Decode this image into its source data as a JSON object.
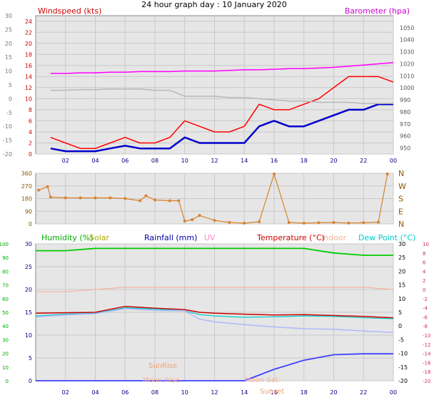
{
  "title": "24 hour graph day : 10 January 2020",
  "x_ticks": [
    "02",
    "04",
    "06",
    "08",
    "10",
    "12",
    "14",
    "16",
    "18",
    "20",
    "22",
    "00"
  ],
  "colors": {
    "wind_speed": "#ff0000",
    "wind_avg": "#0000cc",
    "barometer": "#ff00ff",
    "baro_trace_grey": "#b8b8b8",
    "direction": "#d9822b",
    "humidity": "#00cc00",
    "solar": "#cccc00",
    "rainfall": "#4040ff",
    "uv": "#ff99cc",
    "temperature": "#cc0000",
    "indoor": "#f4b49c",
    "dew_point": "#00cccc",
    "dew_trace": "#b0b8f8",
    "plot_bg": "#e6e6e6"
  },
  "chart_data": [
    {
      "type": "line",
      "panel": "wind_barometer",
      "title": "24 hour graph day : 10 January 2020",
      "left_axis": {
        "label": "Windspeed (kts)",
        "range": [
          0,
          25
        ],
        "ticks": [
          0,
          2,
          4,
          6,
          8,
          10,
          12,
          14,
          16,
          18,
          20,
          22,
          24
        ]
      },
      "outer_axis": {
        "range": [
          -20,
          30
        ],
        "ticks": [
          -20,
          -15,
          -10,
          -5,
          0,
          5,
          10,
          15,
          20,
          25,
          30
        ]
      },
      "right_axis": {
        "label": "Barometer (hpa)",
        "range": [
          980,
          1050
        ],
        "ticks": [
          980,
          990,
          1000,
          1010,
          1020,
          1030,
          1040,
          1050
        ],
        "extra_ticks": [
          950,
          960,
          970
        ],
        "extra_range": [
          945,
          1060
        ]
      },
      "grid": true,
      "x_hours": [
        1,
        2,
        3,
        4,
        5,
        6,
        7,
        8,
        9,
        10,
        11,
        12,
        13,
        14,
        15,
        16,
        17,
        18,
        19,
        20,
        21,
        22,
        23,
        24
      ],
      "series": [
        {
          "name": "Windspeed",
          "values": [
            3,
            2,
            1,
            1,
            2,
            3,
            2,
            2,
            3,
            6,
            5,
            4,
            4,
            5,
            9,
            8,
            8,
            9,
            10,
            12,
            14,
            14,
            14,
            13
          ]
        },
        {
          "name": "Wind average",
          "values": [
            1,
            0.5,
            0.5,
            0.5,
            1,
            1.5,
            1,
            1,
            1,
            3,
            2,
            2,
            2,
            2,
            5,
            6,
            5,
            5,
            6,
            7,
            8,
            8,
            9,
            9
          ]
        },
        {
          "name": "Barometer",
          "values": [
            1012,
            1012,
            1012.5,
            1012.5,
            1013,
            1013,
            1013.5,
            1013.5,
            1013.5,
            1014,
            1014,
            1014,
            1014.5,
            1015,
            1015,
            1015.5,
            1016,
            1016,
            1016.5,
            1017,
            1018,
            1019,
            1020,
            1021
          ]
        },
        {
          "name": "Barometer trace",
          "values": [
            998,
            998,
            998.5,
            998.5,
            999,
            999,
            999,
            998,
            998,
            993,
            993,
            993,
            992,
            992,
            991,
            990,
            989,
            989,
            988,
            988,
            988,
            987,
            987,
            987
          ]
        }
      ]
    },
    {
      "type": "scatter",
      "panel": "wind_direction",
      "left_axis": {
        "range": [
          0,
          360
        ],
        "ticks": [
          0,
          90,
          180,
          270,
          360
        ]
      },
      "right_axis": {
        "labels": [
          "N",
          "W",
          "S",
          "E",
          "N"
        ]
      },
      "grid": true,
      "x_hours": [
        0.2,
        0.8,
        1,
        2,
        3,
        4,
        5,
        6,
        7,
        7.4,
        8,
        9,
        9.6,
        10,
        10.5,
        11,
        12,
        13,
        14,
        15,
        16,
        17,
        18,
        19,
        20,
        21,
        22,
        23,
        23.6
      ],
      "values": [
        240,
        265,
        190,
        185,
        185,
        185,
        185,
        180,
        165,
        200,
        170,
        165,
        165,
        20,
        30,
        60,
        25,
        10,
        5,
        15,
        355,
        10,
        5,
        8,
        10,
        6,
        8,
        12,
        355
      ]
    },
    {
      "type": "line",
      "panel": "humidity_temperature",
      "series_labels": [
        "Humidity (%)",
        "Solar",
        "Rainfall (mm)",
        "UV",
        "Temperature (°C)",
        "Indoor",
        "Dew Point (°C)"
      ],
      "left_axis_outer": {
        "range": [
          0,
          100
        ],
        "ticks": [
          0,
          10,
          20,
          30,
          40,
          50,
          60,
          70,
          80,
          90,
          100
        ]
      },
      "left_axis_inner": {
        "range": [
          0,
          30
        ],
        "ticks": [
          0,
          5,
          10,
          15,
          20,
          25,
          30
        ]
      },
      "right_axis_inner": {
        "range": [
          -20,
          30
        ],
        "ticks": [
          -20,
          -15,
          -10,
          -5,
          0,
          5,
          10,
          15,
          20,
          25,
          30
        ]
      },
      "right_axis_outer": {
        "range": [
          -20,
          10
        ],
        "ticks": [
          -20,
          -18,
          -16,
          -14,
          -12,
          -10,
          -8,
          -6,
          -4,
          -2,
          0,
          2,
          4,
          6,
          8,
          10
        ]
      },
      "annotations": [
        "SunRise",
        "Moon Rise",
        "Sunset",
        "Moon Set"
      ],
      "grid": true,
      "x_hours": [
        0,
        2,
        4,
        6,
        8,
        10,
        11,
        12,
        14,
        16,
        18,
        20,
        22,
        24
      ],
      "series": [
        {
          "name": "Humidity",
          "values": [
            28.5,
            28.5,
            29,
            29,
            29,
            29,
            29,
            29,
            29,
            29,
            29,
            28,
            27.5,
            27.5
          ]
        },
        {
          "name": "Temperature",
          "values": [
            14.8,
            14.9,
            15,
            16.3,
            15.9,
            15.6,
            15,
            14.8,
            14.6,
            14.4,
            14.5,
            14.3,
            14.1,
            13.8
          ]
        },
        {
          "name": "Dew Point",
          "values": [
            14.2,
            14.6,
            14.8,
            16,
            15.7,
            15.3,
            14.5,
            14.2,
            13.9,
            14,
            14.2,
            14.1,
            13.8,
            13.6
          ]
        },
        {
          "name": "Dew trace",
          "values": [
            14,
            14.4,
            14.7,
            15.8,
            15.4,
            15.3,
            13.5,
            12.9,
            12.3,
            11.8,
            11.4,
            11.3,
            10.9,
            10.6
          ]
        },
        {
          "name": "Indoor",
          "values": [
            19.5,
            19.5,
            20,
            20.5,
            20.5,
            20.5,
            20.5,
            20.5,
            20.5,
            20.5,
            20.5,
            20.5,
            20.5,
            20
          ]
        },
        {
          "name": "Rainfall",
          "values": [
            0,
            0,
            0,
            0,
            0,
            0,
            0,
            0,
            0,
            2.5,
            4.5,
            5.7,
            5.9,
            5.9
          ]
        }
      ]
    }
  ]
}
